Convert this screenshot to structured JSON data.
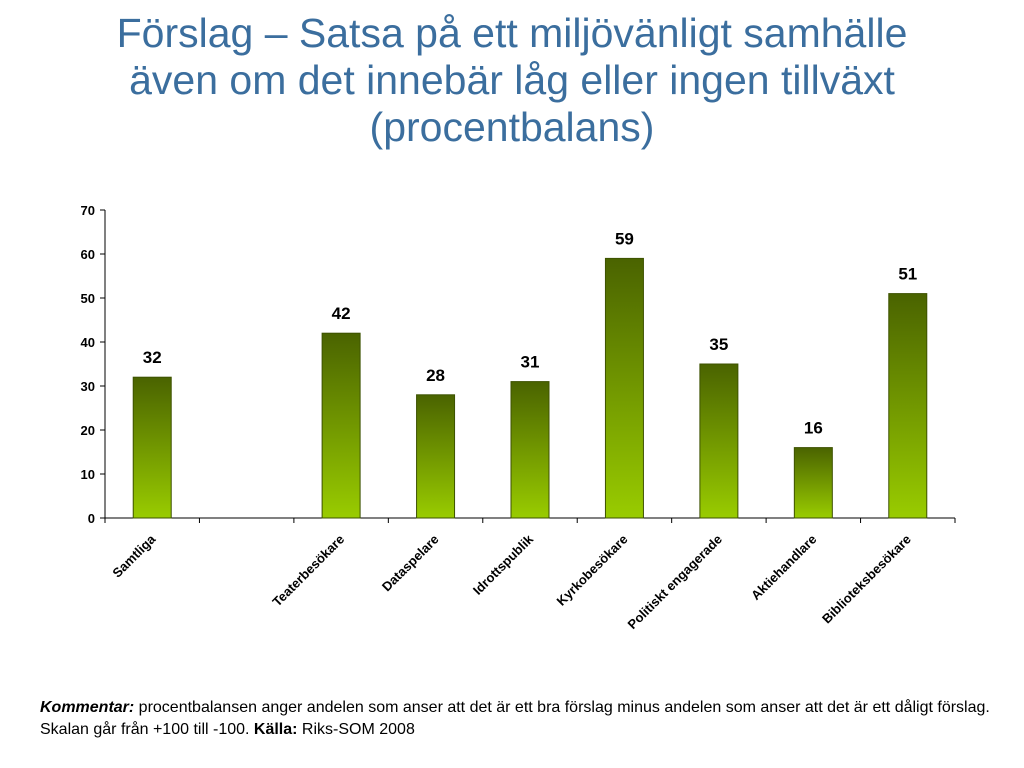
{
  "chart_data": {
    "type": "bar",
    "title": "Förslag – Satsa på ett miljövänligt samhälle även om det innebär låg eller ingen tillväxt (procentbalans)",
    "title_lines": [
      "Förslag – Satsa på ett miljövänligt samhälle",
      "även om det innebär låg eller ingen tillväxt",
      "(procentbalans)"
    ],
    "categories": [
      "Samtliga",
      "",
      "Teaterbesökare",
      "Dataspelare",
      "Idrottspublik",
      "Kyrkobesökare",
      "Politiskt engagerade",
      "Aktiehandlare",
      "Biblioteksbesökare"
    ],
    "values": [
      32,
      null,
      42,
      28,
      31,
      59,
      35,
      16,
      51
    ],
    "ylim": [
      0,
      70
    ],
    "yticks": [
      "0",
      "10",
      "20",
      "30",
      "40",
      "50",
      "60",
      "70"
    ],
    "xlabel": "",
    "ylabel": "",
    "grid": false,
    "legend": "none",
    "bar_gradient_top": "#4a6300",
    "bar_gradient_bottom": "#99cc00",
    "title_color": "#3b6e9e"
  },
  "footnote": {
    "kommentar_label": "Kommentar:",
    "kommentar_text": " procentbalansen anger andelen som anser att det är ett bra förslag minus andelen som anser att det är ett dåligt förslag. Skalan går från +100 till -100. ",
    "kalla_label": "Källa:",
    "kalla_text": " Riks-SOM 2008"
  }
}
